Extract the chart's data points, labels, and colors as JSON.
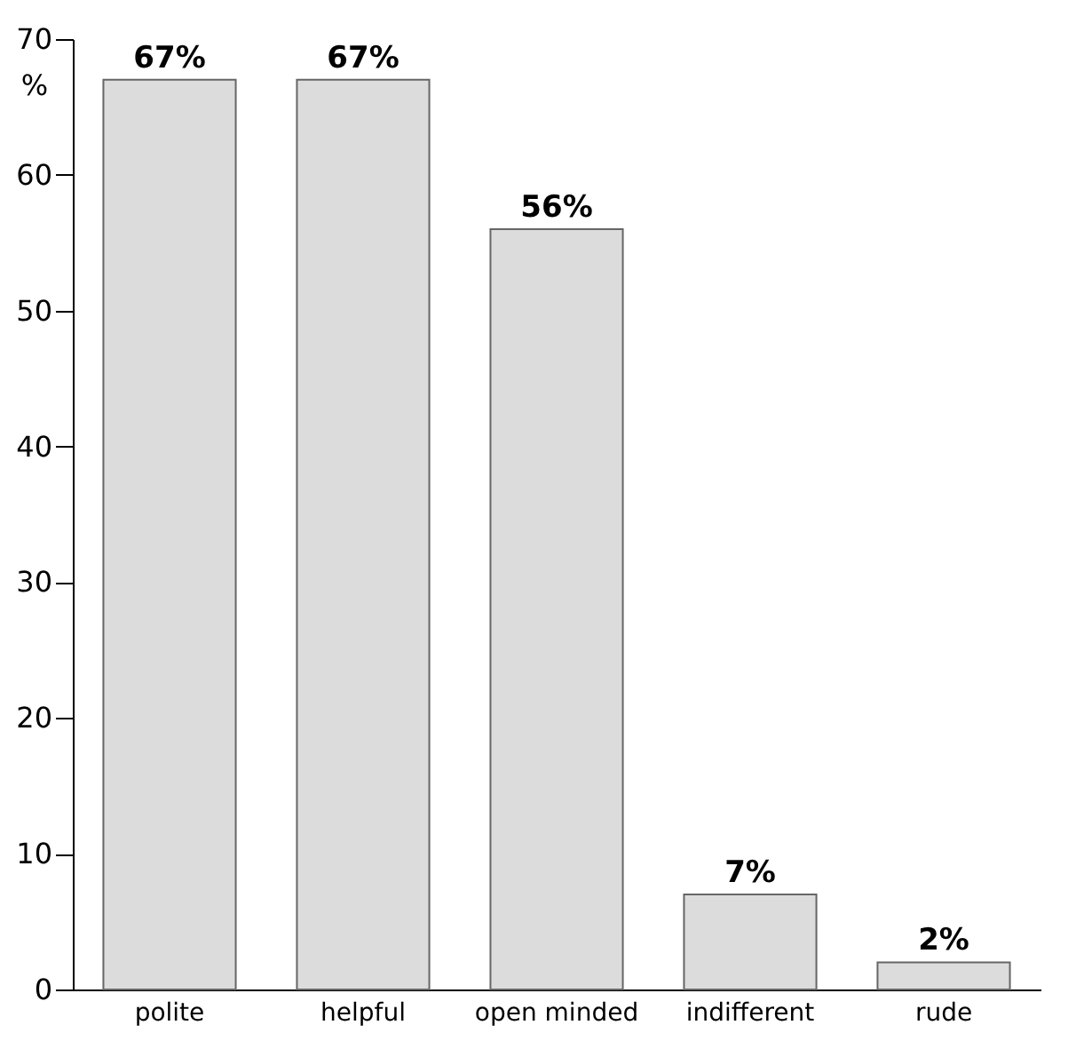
{
  "chart_data": {
    "type": "bar",
    "ylabel": "%",
    "categories": [
      "polite",
      "helpful",
      "open minded",
      "indifferent",
      "rude"
    ],
    "values": [
      67,
      67,
      56,
      7,
      2
    ],
    "value_labels": [
      "67%",
      "67%",
      "56%",
      "7%",
      "2%"
    ],
    "color": "#dcdcdc",
    "ylim": [
      0,
      70
    ],
    "yticks": [
      0,
      10,
      20,
      30,
      40,
      50,
      60,
      70
    ],
    "grid": false
  }
}
